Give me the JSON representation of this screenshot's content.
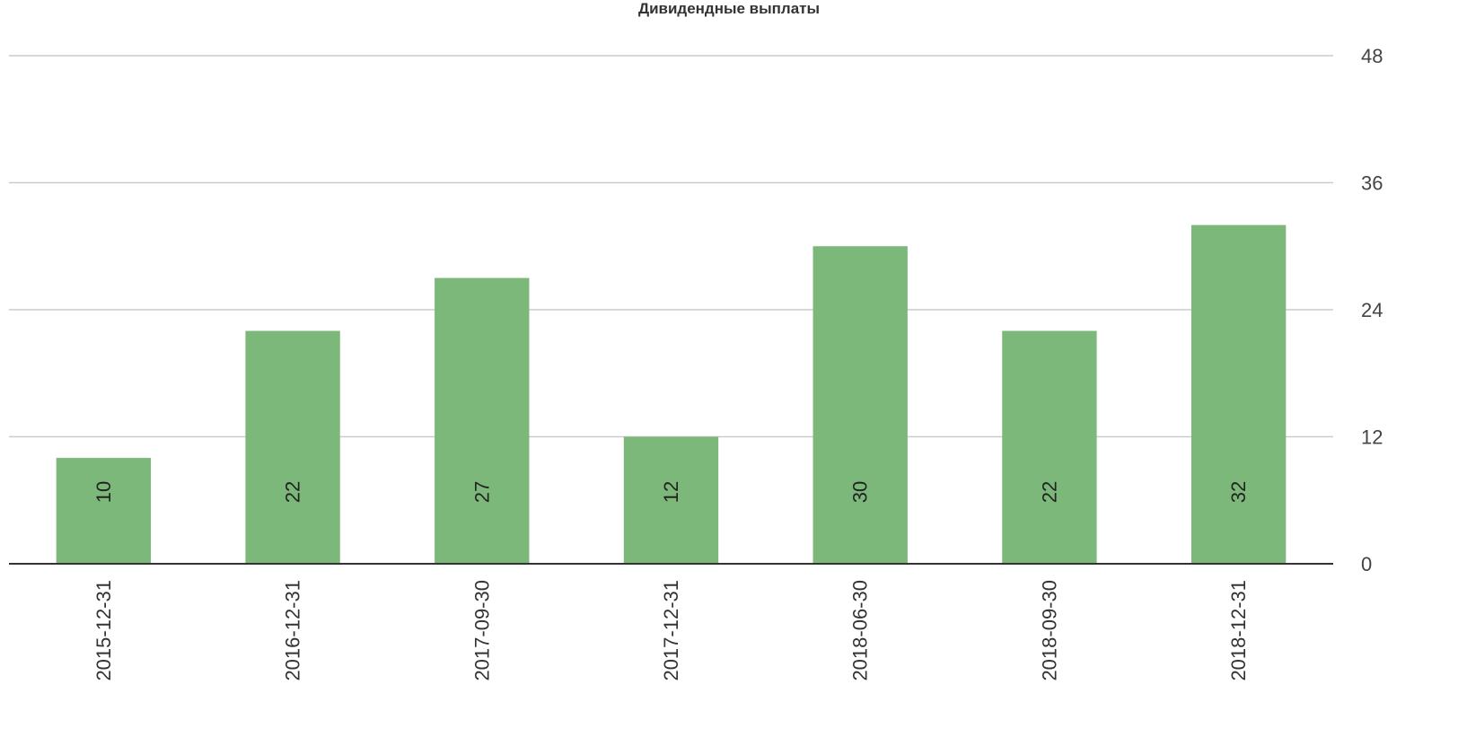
{
  "chart_data": {
    "type": "bar",
    "title": "Дивидендные выплаты",
    "xlabel": "",
    "ylabel": "",
    "categories": [
      "2015-12-31",
      "2016-12-31",
      "2017-09-30",
      "2017-12-31",
      "2018-06-30",
      "2018-09-30",
      "2018-12-31"
    ],
    "values": [
      10,
      22,
      27,
      12,
      30,
      22,
      32
    ],
    "data_labels": [
      "10",
      "22",
      "27",
      "12",
      "30",
      "22",
      "32"
    ],
    "ylim": [
      0,
      48
    ],
    "yticks": [
      0,
      12,
      24,
      36,
      48
    ],
    "ytick_labels": [
      "0",
      "12",
      "24",
      "36",
      "48"
    ],
    "y_axis_side": "right",
    "grid": true,
    "legend": "none",
    "bar_color": "#7cb87a",
    "grid_color": "#cccccc",
    "axis_color": "#333333"
  }
}
